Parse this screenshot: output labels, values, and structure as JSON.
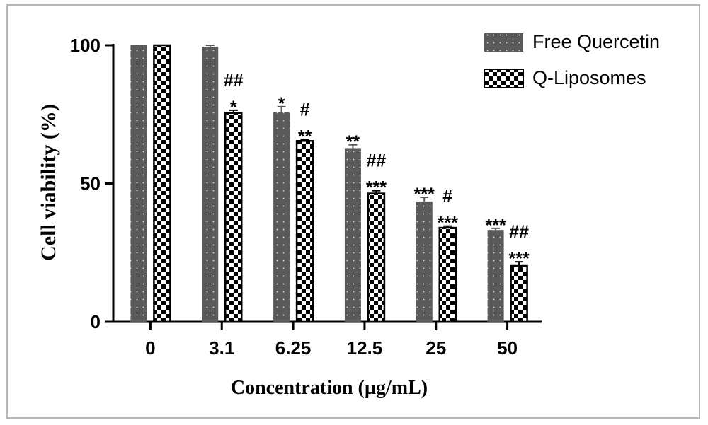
{
  "chart_data": {
    "type": "bar",
    "xlabel": "Concentration (µg/mL)",
    "ylabel": "Cell viability (%)",
    "ylim": [
      0,
      100
    ],
    "yticks": [
      "0",
      "50",
      "100"
    ],
    "categories": [
      "0",
      "3.1",
      "6.25",
      "12.5",
      "25",
      "50"
    ],
    "legend_position": "top-right",
    "series": [
      {
        "name": "Free Quercetin",
        "color": "#5a5a5a",
        "pattern": "dotted",
        "values": [
          100,
          99.5,
          75.8,
          62.8,
          43.5,
          33.2
        ],
        "errors": [
          0,
          0.5,
          2.0,
          1.2,
          1.5,
          0.6
        ],
        "annotations": [
          [],
          [],
          [
            "*"
          ],
          [
            "**"
          ],
          [
            "***"
          ],
          [
            "***"
          ]
        ]
      },
      {
        "name": "Q-Liposomes",
        "color": "#000000",
        "pattern": "checker",
        "values": [
          100,
          75.5,
          65.4,
          46.4,
          34.0,
          20.2
        ],
        "errors": [
          0,
          1.0,
          0.5,
          1.0,
          0.6,
          1.5
        ],
        "annotations": [
          [],
          [
            "##",
            "*"
          ],
          [
            "#",
            "**"
          ],
          [
            "##",
            "***"
          ],
          [
            "#",
            "***"
          ],
          [
            "##",
            "***"
          ]
        ]
      }
    ]
  }
}
